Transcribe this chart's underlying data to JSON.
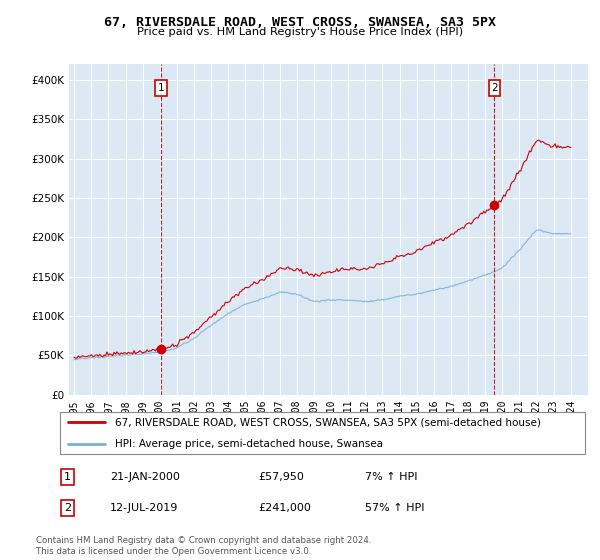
{
  "title": "67, RIVERSDALE ROAD, WEST CROSS, SWANSEA, SA3 5PX",
  "subtitle": "Price paid vs. HM Land Registry's House Price Index (HPI)",
  "legend_label_red": "67, RIVERSDALE ROAD, WEST CROSS, SWANSEA, SA3 5PX (semi-detached house)",
  "legend_label_blue": "HPI: Average price, semi-detached house, Swansea",
  "transaction1_date": "21-JAN-2000",
  "transaction1_price": "£57,950",
  "transaction1_hpi": "7% ↑ HPI",
  "transaction1_year": 2000.05,
  "transaction1_value": 57950,
  "transaction2_date": "12-JUL-2019",
  "transaction2_price": "£241,000",
  "transaction2_hpi": "57% ↑ HPI",
  "transaction2_year": 2019.54,
  "transaction2_value": 241000,
  "footnote": "Contains HM Land Registry data © Crown copyright and database right 2024.\nThis data is licensed under the Open Government Licence v3.0.",
  "ylim": [
    0,
    420000
  ],
  "yticks": [
    0,
    50000,
    100000,
    150000,
    200000,
    250000,
    300000,
    350000,
    400000
  ],
  "chart_bg_color": "#dce9f5",
  "plot_bg_color": "#ffffff",
  "grid_color": "#ffffff",
  "red_color": "#cc0000",
  "blue_color": "#7bafd4",
  "vline_color": "#cc0000",
  "xmin": 1994.7,
  "xmax": 2025.0
}
